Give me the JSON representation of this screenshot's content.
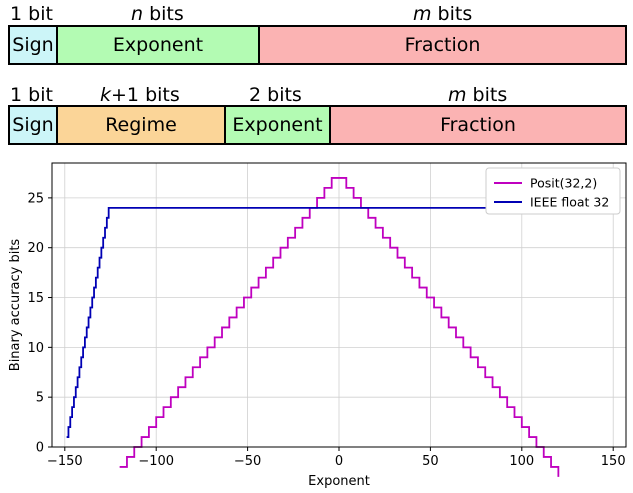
{
  "ieee_format": {
    "labels": [
      {
        "id": "sign",
        "pre": "1 bit",
        "var": "",
        "post": ""
      },
      {
        "id": "exponent",
        "pre": "",
        "var": "n",
        "post": " bits"
      },
      {
        "id": "fraction",
        "pre": "",
        "var": "m",
        "post": " bits"
      }
    ],
    "fields": [
      {
        "id": "sign",
        "text": "Sign",
        "color": "#ccf5f8"
      },
      {
        "id": "exponent",
        "text": "Exponent",
        "color": "#b3fbb3"
      },
      {
        "id": "fraction",
        "text": "Fraction",
        "color": "#fbb3b3"
      }
    ]
  },
  "posit_format": {
    "labels": [
      {
        "id": "sign",
        "pre": "1 bit",
        "var": "",
        "post": ""
      },
      {
        "id": "regime",
        "pre": "",
        "var": "k",
        "post": "+1 bits"
      },
      {
        "id": "exponent",
        "pre": "2 bits",
        "var": "",
        "post": ""
      },
      {
        "id": "fraction",
        "pre": "",
        "var": "m",
        "post": " bits"
      }
    ],
    "fields": [
      {
        "id": "sign",
        "text": "Sign",
        "color": "#ccf5f8"
      },
      {
        "id": "regime",
        "text": "Regime",
        "color": "#fbd598"
      },
      {
        "id": "exponent",
        "text": "Exponent",
        "color": "#b3fbb3"
      },
      {
        "id": "fraction",
        "text": "Fraction",
        "color": "#fbb3b3"
      }
    ]
  },
  "chart_data": {
    "type": "line",
    "xlabel": "Exponent",
    "ylabel": "Binary accuracy bits",
    "xlim": [
      -157,
      157
    ],
    "ylim": [
      0,
      28.5
    ],
    "xticks": [
      -150,
      -100,
      -50,
      0,
      50,
      100,
      150
    ],
    "yticks": [
      0,
      5,
      10,
      15,
      20,
      25
    ],
    "xtick_labels": [
      "−150",
      "−100",
      "−50",
      "0",
      "50",
      "100",
      "150"
    ],
    "ytick_labels": [
      "0",
      "5",
      "10",
      "15",
      "20",
      "25"
    ],
    "grid": true,
    "legend": "top-right",
    "series": [
      {
        "name": "Posit(32,2)",
        "color": "#bf00bf",
        "kind": "posit",
        "es": 2,
        "nbits": 32,
        "x_range": [
          -120,
          120
        ]
      },
      {
        "name": "IEEE float 32",
        "color": "#0000b4",
        "kind": "ieee",
        "mantissa_bits": 23,
        "x_range": [
          -149,
          127
        ]
      }
    ]
  }
}
